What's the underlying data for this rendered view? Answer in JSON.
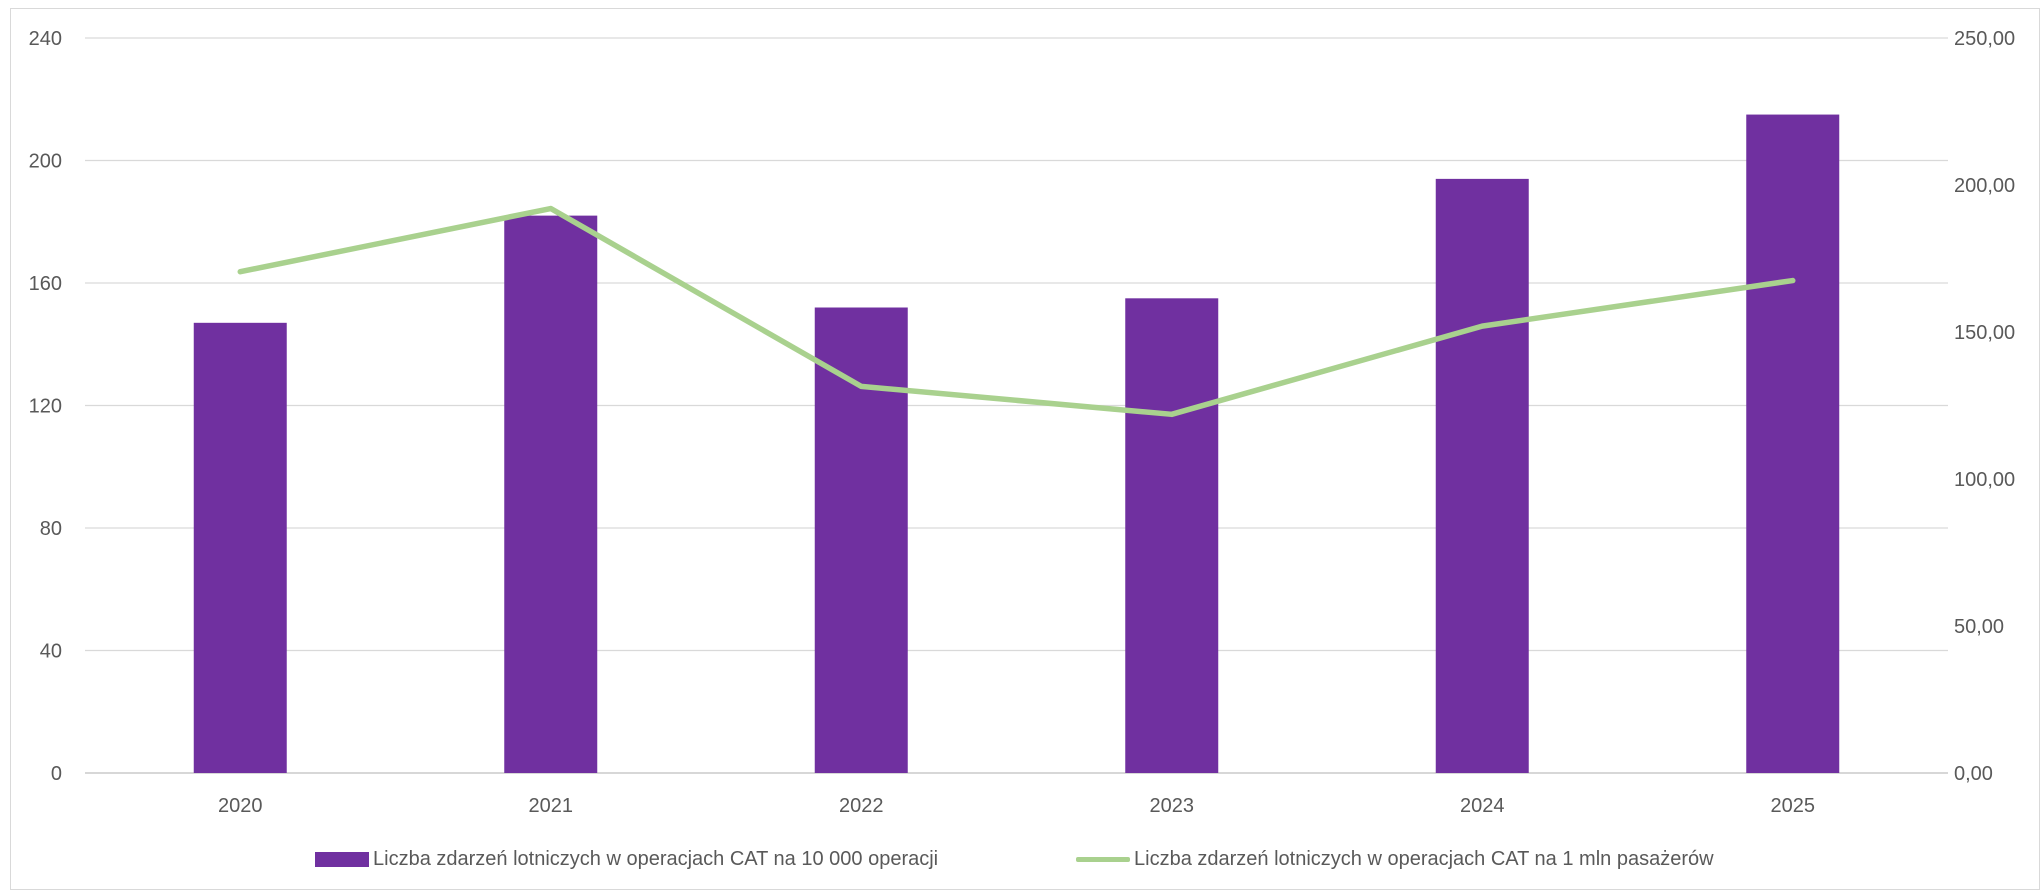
{
  "colors": {
    "bar": "#7030a0",
    "line": "#a9d18e",
    "grid": "#d9d9d9",
    "text": "#595959"
  },
  "chart_data": {
    "type": "bar",
    "categories": [
      "2020",
      "2021",
      "2022",
      "2023",
      "2024",
      "2025"
    ],
    "series": [
      {
        "name": "Liczba zdarzeń lotniczych w operacjach CAT na 10 000 operacji",
        "type": "bar",
        "axis": "left",
        "values": [
          147,
          182,
          152,
          155,
          194,
          215
        ]
      },
      {
        "name": "Liczba zdarzeń lotniczych w operacjach CAT na 1 mln pasażerów",
        "type": "line",
        "axis": "right",
        "values": [
          170.5,
          192,
          131.5,
          122,
          152,
          167.5
        ]
      }
    ],
    "y_left": {
      "ylim": [
        0,
        240
      ],
      "ticks": [
        "0",
        "40",
        "80",
        "120",
        "160",
        "200",
        "240"
      ]
    },
    "y_right": {
      "ylim": [
        0,
        250
      ],
      "ticks": [
        "0,00",
        "50,00",
        "100,00",
        "150,00",
        "200,00",
        "250,00"
      ]
    },
    "grid": true,
    "legend_position": "bottom"
  }
}
